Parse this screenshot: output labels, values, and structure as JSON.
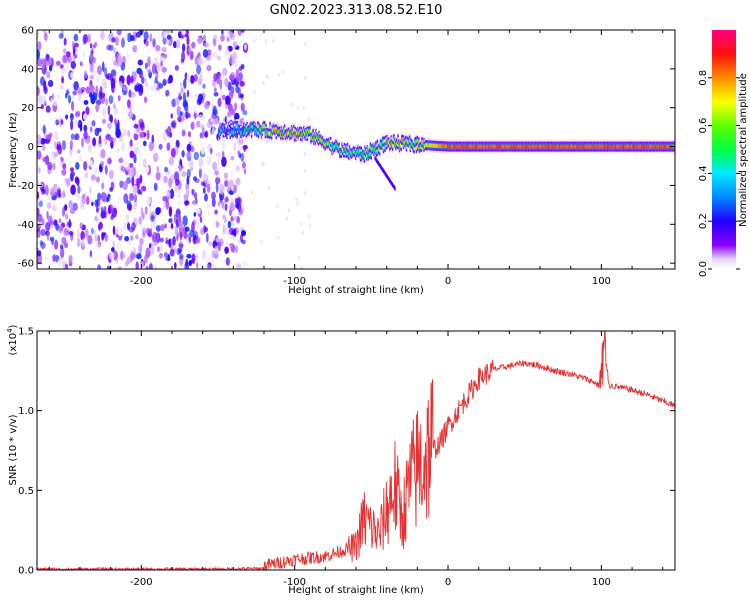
{
  "title": "GN02.2023.313.08.52.E10",
  "colors": {
    "snr_line": "#e83030",
    "axis": "#000000",
    "speckle": "#6a00e6",
    "background": "#ffffff"
  },
  "chart_data": [
    {
      "type": "heatmap",
      "name": "spectrogram",
      "xlabel": "Height of straight line (km)",
      "ylabel": "Frequency (Hz)",
      "xlim": [
        -268,
        148
      ],
      "ylim": [
        -63,
        60
      ],
      "xticks": [
        -200,
        -100,
        0,
        100
      ],
      "yticks": [
        60,
        40,
        20,
        0,
        -20,
        -40,
        -60
      ],
      "xticklabels": [
        "-200",
        "-100",
        "0",
        "100"
      ],
      "yticklabels": [
        "60",
        "40",
        "20",
        "0",
        "-20",
        "-40",
        "-60"
      ],
      "colorbar": {
        "label": "Normalized spectral amplitude",
        "range": [
          0,
          1
        ],
        "ticks": [
          0.0,
          0.2,
          0.4,
          0.6,
          0.8
        ],
        "ticklabels": [
          "0.0",
          "0.2",
          "0.4",
          "0.6",
          "0.8"
        ],
        "colormap": "rainbow (white-purple-blue-cyan-green-yellow-orange-red-magenta)"
      },
      "features": {
        "noise_region_x": [
          -268,
          -132
        ],
        "noise_amplitude": [
          0.05,
          0.25
        ],
        "signal_track": [
          {
            "x": -150,
            "freq": 8,
            "amp": 0.2
          },
          {
            "x": -130,
            "freq": 9,
            "amp": 0.35
          },
          {
            "x": -110,
            "freq": 8,
            "amp": 0.6
          },
          {
            "x": -90,
            "freq": 6,
            "amp": 0.55
          },
          {
            "x": -70,
            "freq": -2,
            "amp": 0.45
          },
          {
            "x": -55,
            "freq": -4,
            "amp": 0.4
          },
          {
            "x": -40,
            "freq": 2,
            "amp": 0.5
          },
          {
            "x": -20,
            "freq": 1,
            "amp": 0.6
          },
          {
            "x": 0,
            "freq": 0,
            "amp": 0.85
          },
          {
            "x": 50,
            "freq": 0,
            "amp": 0.85
          },
          {
            "x": 100,
            "freq": 0,
            "amp": 0.85
          },
          {
            "x": 148,
            "freq": 0,
            "amp": 0.85
          }
        ]
      }
    },
    {
      "type": "line",
      "name": "snr",
      "xlabel": "Height of straight line (km)",
      "ylabel": "SNR (10 * v/v)",
      "yscale_label": "(x10",
      "yscale_exp": "4",
      "yscale_close": ")",
      "xlim": [
        -268,
        148
      ],
      "ylim": [
        0,
        1.5
      ],
      "xticks": [
        -200,
        -100,
        0,
        100
      ],
      "yticks": [
        0.0,
        0.5,
        1.0,
        1.5
      ],
      "xticklabels": [
        "-200",
        "-100",
        "0",
        "100"
      ],
      "yticklabels": [
        "0.0",
        "0.5",
        "1.0",
        "1.5"
      ],
      "series": [
        {
          "name": "SNR",
          "x": [
            -268,
            -200,
            -150,
            -120,
            -110,
            -100,
            -90,
            -80,
            -70,
            -60,
            -55,
            -50,
            -45,
            -40,
            -35,
            -30,
            -25,
            -20,
            -15,
            -10,
            -5,
            0,
            10,
            20,
            30,
            40,
            50,
            60,
            70,
            80,
            90,
            95,
            100,
            102,
            105,
            110,
            120,
            130,
            140,
            148
          ],
          "y": [
            0.005,
            0.005,
            0.005,
            0.01,
            0.03,
            0.05,
            0.06,
            0.07,
            0.1,
            0.14,
            0.3,
            0.25,
            0.2,
            0.35,
            0.5,
            0.3,
            0.5,
            0.6,
            0.65,
            0.75,
            0.8,
            0.9,
            1.05,
            1.2,
            1.26,
            1.28,
            1.3,
            1.28,
            1.25,
            1.23,
            1.2,
            1.18,
            1.15,
            1.4,
            1.16,
            1.15,
            1.13,
            1.1,
            1.06,
            1.03
          ]
        }
      ]
    }
  ]
}
